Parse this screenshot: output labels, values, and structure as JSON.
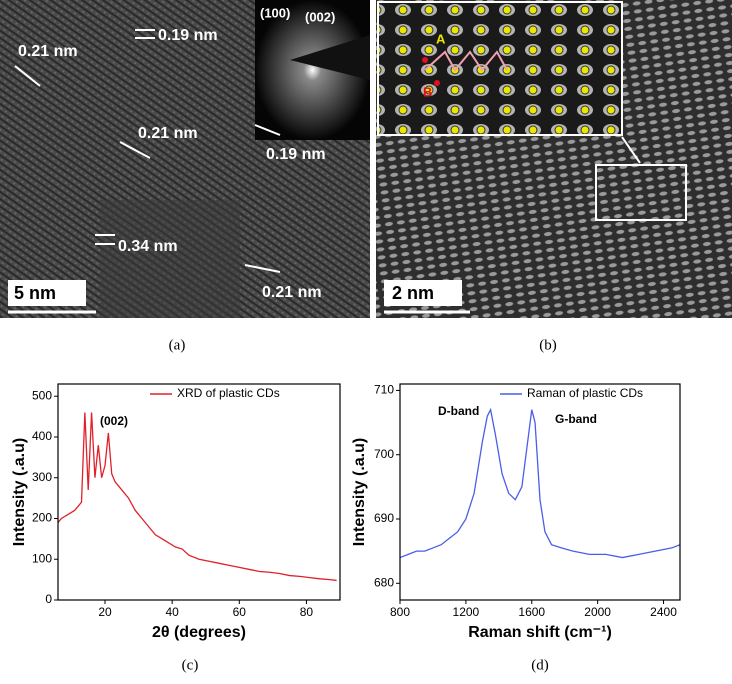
{
  "panels": {
    "a": {
      "label": "(a)",
      "spacings": [
        "0.21 nm",
        "0.19 nm",
        "0.21 nm",
        "0.19 nm",
        "0.34 nm",
        "0.21 nm"
      ],
      "diffraction": [
        "(100)",
        "(002)"
      ],
      "scale_bar": "5 nm"
    },
    "b": {
      "label": "(b)",
      "sites": [
        "A",
        "B"
      ],
      "scale_bar": "2 nm"
    },
    "c": {
      "label": "(c)"
    },
    "d": {
      "label": "(d)"
    }
  },
  "chart_data": [
    {
      "type": "line",
      "xlabel": "2θ (degrees)",
      "ylabel": "Intensity (.a.u)",
      "x": [
        6,
        7,
        9,
        11,
        13,
        14,
        15,
        16,
        17,
        18,
        19,
        20,
        21,
        22,
        23,
        25,
        27,
        29,
        31,
        33,
        35,
        37,
        39,
        41,
        43,
        45,
        48,
        51,
        54,
        57,
        60,
        63,
        66,
        69,
        72,
        75,
        78,
        81,
        84,
        87,
        89
      ],
      "series": [
        {
          "name": "XRD of plastic CDs",
          "color": "#e0202a",
          "values": [
            190,
            200,
            210,
            220,
            240,
            460,
            270,
            460,
            300,
            380,
            300,
            330,
            410,
            310,
            290,
            270,
            250,
            220,
            200,
            180,
            160,
            150,
            140,
            130,
            125,
            110,
            100,
            95,
            90,
            85,
            80,
            75,
            70,
            68,
            65,
            60,
            58,
            55,
            52,
            50,
            48
          ]
        }
      ],
      "annotations": [
        "(002)"
      ],
      "xlim": [
        6,
        90
      ],
      "xticks": [
        20,
        40,
        60,
        80
      ],
      "ylim": [
        0,
        530
      ],
      "yticks": [
        0,
        100,
        200,
        300,
        400,
        500
      ],
      "legend": "upper right"
    },
    {
      "type": "line",
      "xlabel": "Raman shift (cm⁻¹)",
      "ylabel": "Intensity (.a.u)",
      "x": [
        800,
        850,
        900,
        950,
        1000,
        1050,
        1100,
        1150,
        1200,
        1250,
        1300,
        1330,
        1350,
        1380,
        1420,
        1460,
        1500,
        1540,
        1570,
        1600,
        1620,
        1650,
        1680,
        1720,
        1780,
        1850,
        1950,
        2050,
        2150,
        2250,
        2350,
        2450,
        2500
      ],
      "series": [
        {
          "name": "Raman of plastic CDs",
          "color": "#4a5ee8",
          "values": [
            684,
            684.5,
            685,
            685,
            685.5,
            686,
            687,
            688,
            690,
            694,
            702,
            706,
            707,
            703,
            697,
            694,
            693,
            695,
            701,
            707,
            705,
            693,
            688,
            686,
            685.5,
            685,
            684.5,
            684.5,
            684,
            684.5,
            685,
            685.5,
            686
          ]
        }
      ],
      "annotations": [
        "D-band",
        "G-band"
      ],
      "xlim": [
        800,
        2500
      ],
      "xticks": [
        800,
        1200,
        1600,
        2000,
        2400
      ],
      "ylim": [
        677.4,
        711
      ],
      "yticks": [
        680,
        690,
        700,
        710
      ],
      "legend": "upper right"
    }
  ]
}
